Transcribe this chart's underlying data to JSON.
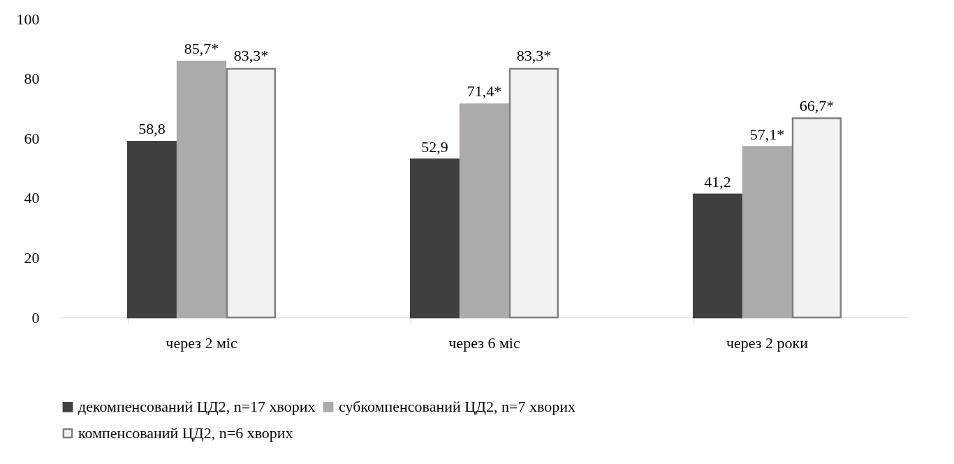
{
  "chart_data": {
    "type": "bar",
    "categories": [
      "через 2 міс",
      "через 6 міс",
      "через 2 роки"
    ],
    "series": [
      {
        "name": "декомпенсований ЦД2, n=17 хворих",
        "color": "#404040",
        "values": [
          58.8,
          52.9,
          41.2
        ],
        "value_labels": [
          "58,8",
          "52,9",
          "41,2"
        ]
      },
      {
        "name": "субкомпенсований ЦД2, n=7 хворих",
        "color": "#aeaaaa",
        "values": [
          85.7,
          71.4,
          57.1
        ],
        "value_labels": [
          "85,7*",
          "71,4*",
          "57,1*"
        ]
      },
      {
        "name": "компенсований ЦД2, n=6 хворих",
        "color": "#f2f2f2",
        "values": [
          83.3,
          83.3,
          66.7
        ],
        "value_labels": [
          "83,3*",
          "83,3*",
          "66,7*"
        ]
      }
    ],
    "ylim": [
      0,
      100
    ],
    "yticks": [
      0,
      20,
      40,
      60,
      80,
      100
    ],
    "grid": false,
    "legend": "bottom"
  }
}
